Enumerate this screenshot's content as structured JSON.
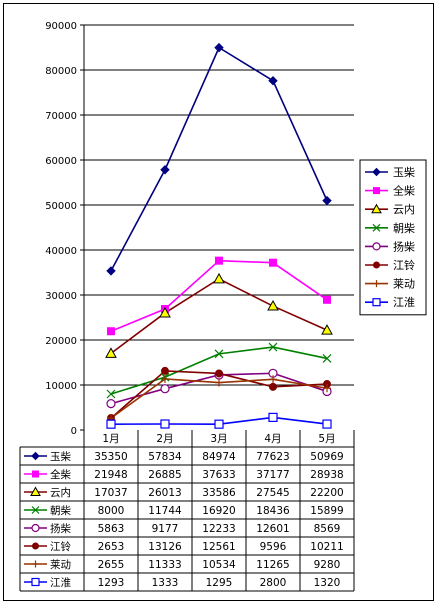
{
  "chart_data": {
    "type": "line",
    "categories": [
      "1月",
      "2月",
      "3月",
      "4月",
      "5月"
    ],
    "ylim": [
      0,
      90000
    ],
    "yticks": [
      "0",
      "10000",
      "20000",
      "30000",
      "40000",
      "50000",
      "60000",
      "70000",
      "80000",
      "90000"
    ],
    "grid": true,
    "legend_position": "right",
    "data_table": true,
    "series": [
      {
        "name": "玉柴",
        "values": [
          35350,
          57834,
          84974,
          77623,
          50969
        ],
        "color": "#000080",
        "marker": "diamond"
      },
      {
        "name": "全柴",
        "values": [
          21948,
          26885,
          37633,
          37177,
          28938
        ],
        "color": "#FF00FF",
        "marker": "square"
      },
      {
        "name": "云内",
        "values": [
          17037,
          26013,
          33586,
          27545,
          22200
        ],
        "color": "#800000",
        "marker": "triangle"
      },
      {
        "name": "朝柴",
        "values": [
          8000,
          11744,
          16920,
          18436,
          15899
        ],
        "color": "#008000",
        "marker": "x"
      },
      {
        "name": "扬柴",
        "values": [
          5863,
          9177,
          12233,
          12601,
          8569
        ],
        "color": "#800080",
        "marker": "circle-open"
      },
      {
        "name": "江铃",
        "values": [
          2653,
          13126,
          12561,
          9596,
          10211
        ],
        "color": "#800000",
        "marker": "circle"
      },
      {
        "name": "莱动",
        "values": [
          2655,
          11333,
          10534,
          11265,
          9280
        ],
        "color": "#993300",
        "marker": "plus"
      },
      {
        "name": "江淮",
        "values": [
          1293,
          1333,
          1295,
          2800,
          1320
        ],
        "color": "#0000FF",
        "marker": "square-open"
      }
    ]
  }
}
